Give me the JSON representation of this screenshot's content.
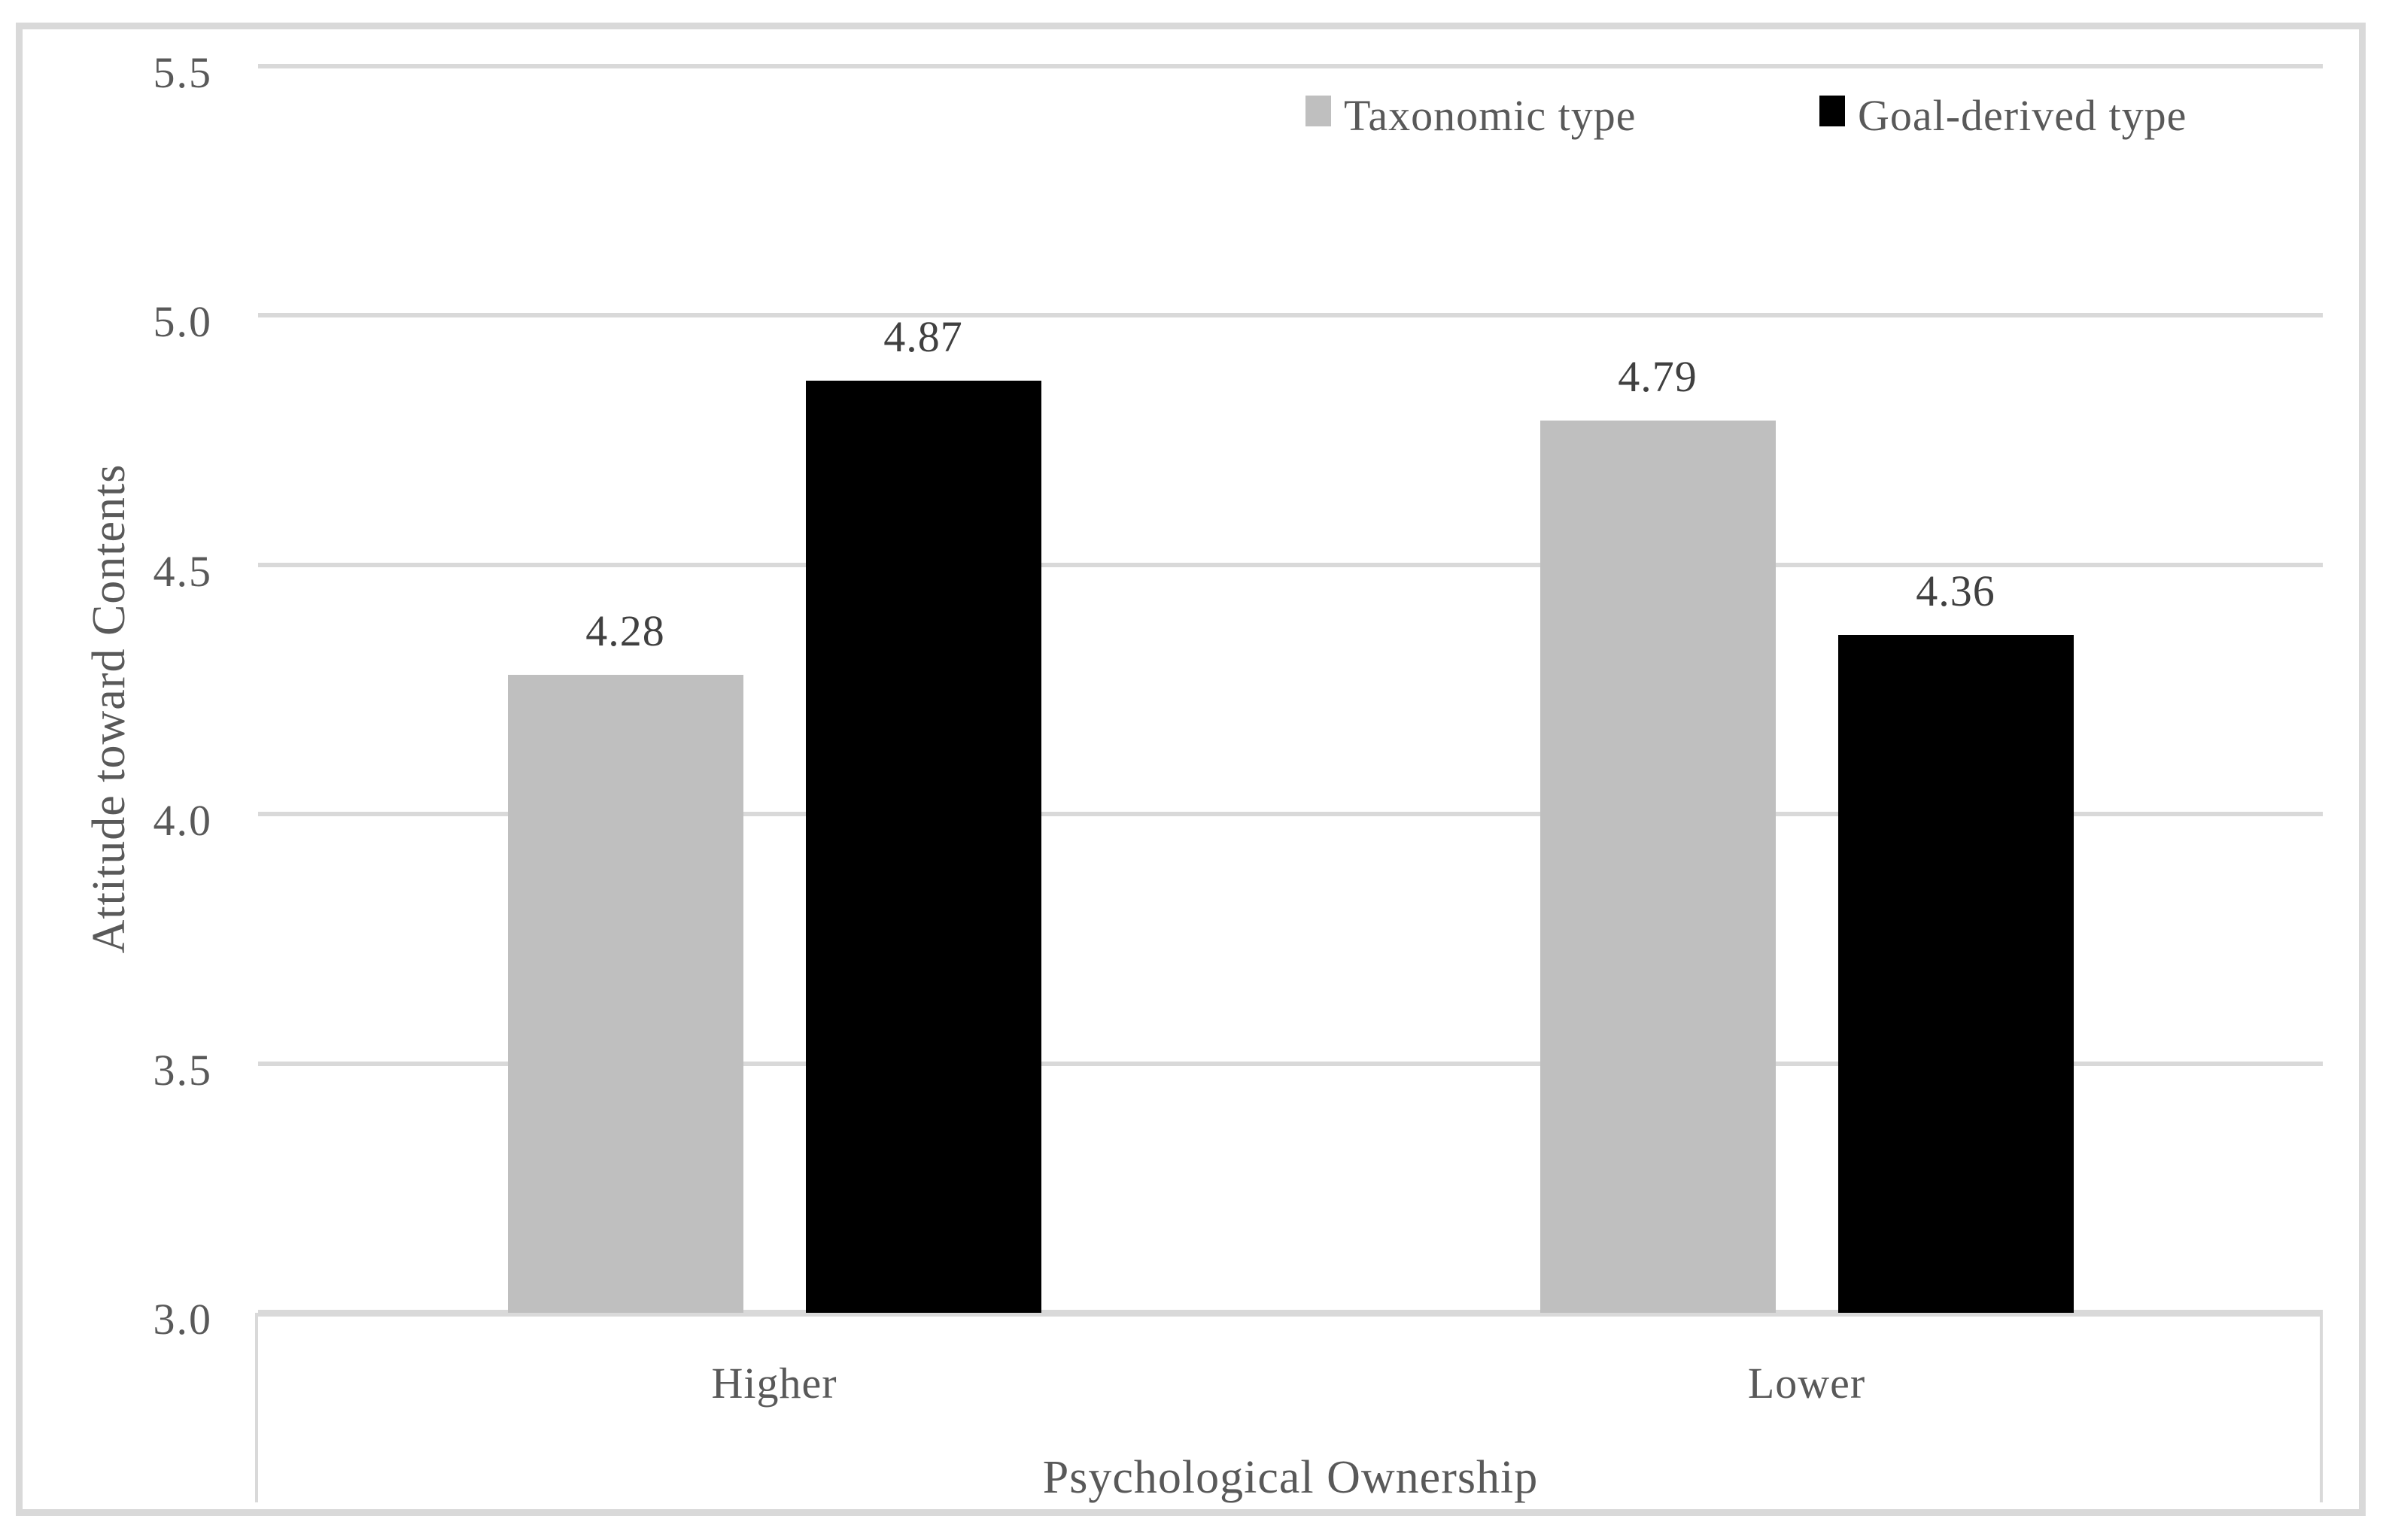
{
  "chart_data": {
    "type": "bar",
    "title": "",
    "categories": [
      "Higher",
      "Lower"
    ],
    "series": [
      {
        "name": "Taxonomic type",
        "color": "#bfbfbf",
        "values": [
          4.28,
          4.79
        ]
      },
      {
        "name": "Goal-derived type",
        "color": "#000000",
        "values": [
          4.87,
          4.36
        ]
      }
    ],
    "xlabel": "Psychological Ownership",
    "ylabel": "Attitude toward Contents",
    "ylim": [
      3.0,
      5.5
    ],
    "yticks": [
      5.5,
      5.0,
      4.5,
      4.0,
      3.5,
      3.0
    ],
    "value_label_decimals": 2,
    "ytick_decimals": 1,
    "grid": true,
    "legend_position": "top-right",
    "bar_value_labels_shown": true
  },
  "colors": {
    "background": "#ffffff",
    "grid": "#d9d9d9",
    "border": "#d9d9d9",
    "axis_text": "#595959",
    "value_label_text": "#404040"
  }
}
